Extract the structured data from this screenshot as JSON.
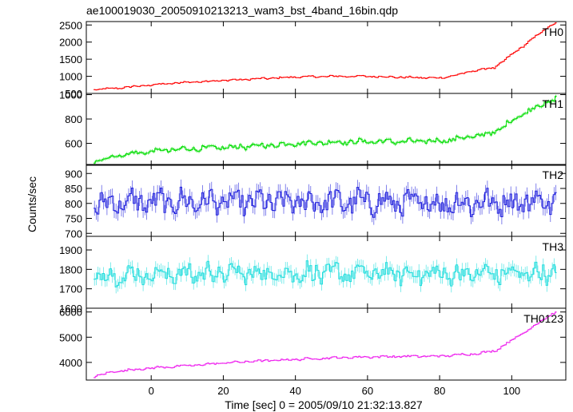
{
  "chart_data": {
    "type": "line",
    "title": "ae100019030_20050910213213_wam3_bst_4band_16bin.qdp",
    "xlabel": "Time [sec] 0 = 2005/09/10 21:32:13.827",
    "ylabel": "Counts/sec",
    "xlim": [
      -18,
      115
    ],
    "xticks": [
      0,
      20,
      40,
      60,
      80,
      100
    ],
    "xtick_labels": [
      "0",
      "20",
      "40",
      "60",
      "80",
      "100"
    ],
    "grid": false,
    "panels": [
      {
        "name": "TH0",
        "color": "#ff0000",
        "ylim": [
          500,
          2600
        ],
        "yticks": [
          500,
          1000,
          1500,
          2000,
          2500
        ],
        "ytick_labels": [
          "500",
          "1000",
          "1500",
          "2000",
          "2500"
        ],
        "noise": 28,
        "profile": [
          [
            -16,
            610
          ],
          [
            -10,
            650
          ],
          [
            0,
            750
          ],
          [
            10,
            830
          ],
          [
            20,
            880
          ],
          [
            30,
            930
          ],
          [
            40,
            980
          ],
          [
            50,
            1000
          ],
          [
            60,
            1000
          ],
          [
            70,
            970
          ],
          [
            80,
            950
          ],
          [
            85,
            1050
          ],
          [
            90,
            1180
          ],
          [
            95,
            1250
          ],
          [
            100,
            1650
          ],
          [
            105,
            2050
          ],
          [
            110,
            2450
          ],
          [
            112,
            2550
          ]
        ]
      },
      {
        "name": "TH1",
        "color": "#00dd00",
        "ylim": [
          420,
          1010
        ],
        "yticks": [
          600,
          800,
          1000
        ],
        "ytick_labels": [
          "600",
          "800",
          "1000"
        ],
        "noise": 22,
        "profile": [
          [
            -16,
            450
          ],
          [
            -10,
            500
          ],
          [
            0,
            535
          ],
          [
            10,
            555
          ],
          [
            20,
            565
          ],
          [
            30,
            580
          ],
          [
            40,
            600
          ],
          [
            50,
            610
          ],
          [
            60,
            615
          ],
          [
            70,
            615
          ],
          [
            80,
            620
          ],
          [
            90,
            660
          ],
          [
            95,
            690
          ],
          [
            100,
            790
          ],
          [
            105,
            880
          ],
          [
            110,
            940
          ],
          [
            112,
            970
          ]
        ]
      },
      {
        "name": "TH2",
        "color": "#2222dd",
        "ylim": [
          690,
          930
        ],
        "yticks": [
          700,
          750,
          800,
          850,
          900
        ],
        "ytick_labels": [
          "700",
          "750",
          "800",
          "850",
          "900"
        ],
        "noise": 42,
        "profile": [
          [
            -16,
            800
          ],
          [
            0,
            805
          ],
          [
            20,
            805
          ],
          [
            40,
            805
          ],
          [
            60,
            805
          ],
          [
            80,
            800
          ],
          [
            100,
            805
          ],
          [
            112,
            810
          ]
        ]
      },
      {
        "name": "TH3",
        "color": "#22dddd",
        "ylim": [
          1600,
          1970
        ],
        "yticks": [
          1600,
          1700,
          1800,
          1900
        ],
        "ytick_labels": [
          "1600",
          "1700",
          "1800",
          "1900"
        ],
        "noise": 55,
        "profile": [
          [
            -16,
            1770
          ],
          [
            0,
            1775
          ],
          [
            20,
            1780
          ],
          [
            40,
            1780
          ],
          [
            60,
            1780
          ],
          [
            80,
            1775
          ],
          [
            100,
            1780
          ],
          [
            112,
            1780
          ]
        ]
      },
      {
        "name": "TH0123",
        "color": "#ee22ee",
        "ylim": [
          3300,
          6150
        ],
        "yticks": [
          4000,
          5000,
          6000
        ],
        "ytick_labels": [
          "4000",
          "5000",
          "6000"
        ],
        "noise": 45,
        "profile": [
          [
            -16,
            3450
          ],
          [
            -10,
            3650
          ],
          [
            0,
            3780
          ],
          [
            10,
            3870
          ],
          [
            20,
            3980
          ],
          [
            30,
            4060
          ],
          [
            40,
            4120
          ],
          [
            50,
            4180
          ],
          [
            60,
            4220
          ],
          [
            70,
            4240
          ],
          [
            80,
            4250
          ],
          [
            90,
            4350
          ],
          [
            95,
            4450
          ],
          [
            100,
            4900
          ],
          [
            105,
            5350
          ],
          [
            110,
            5850
          ],
          [
            112,
            5980
          ]
        ]
      }
    ]
  }
}
